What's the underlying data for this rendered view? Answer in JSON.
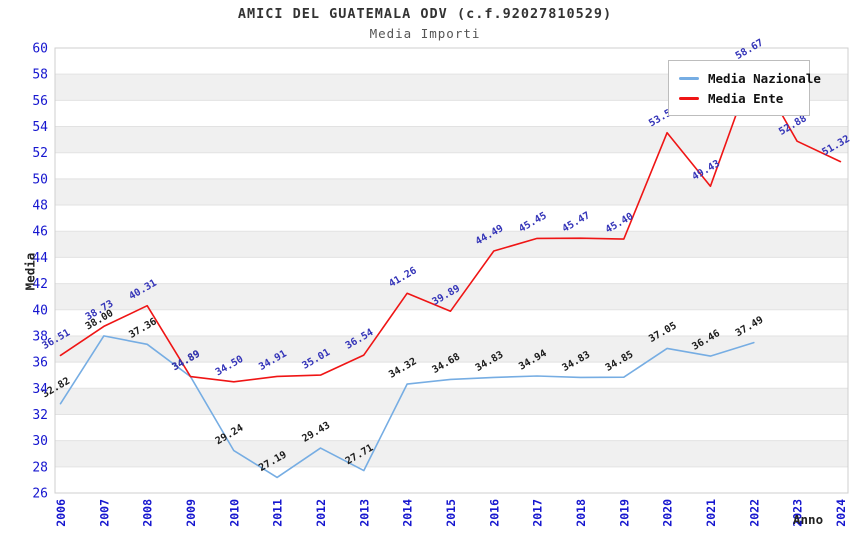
{
  "title": "AMICI DEL GUATEMALA ODV (c.f.92027810529)",
  "subtitle": "Media Importi",
  "legend": {
    "nazionale_label": "Media Nazionale",
    "ente_label": "Media Ente"
  },
  "axes": {
    "y_label": "Media",
    "x_label": "Anno"
  },
  "colors": {
    "nazionale_line": "#76ade3",
    "ente_line": "#ef1515",
    "nazionale_value_label": "#1c1c1c",
    "ente_value_label": "#3434b8",
    "tick_text": "#1616cf",
    "band_fill": "#f0f0f0",
    "grid_line": "#e2e2e2",
    "plot_border": "#cfcfcf",
    "legend_border": "#bdbdbd"
  },
  "chart_data": {
    "type": "line",
    "title": "AMICI DEL GUATEMALA ODV (c.f.92027810529)",
    "subtitle": "Media Importi",
    "xlabel": "Anno",
    "ylabel": "Media",
    "x": [
      2006,
      2007,
      2008,
      2009,
      2010,
      2011,
      2012,
      2013,
      2014,
      2015,
      2016,
      2017,
      2018,
      2019,
      2020,
      2021,
      2022,
      2023,
      2024
    ],
    "series": [
      {
        "name": "Media Nazionale",
        "values": [
          32.82,
          38.0,
          37.36,
          34.89,
          29.24,
          27.19,
          29.43,
          27.71,
          34.32,
          34.68,
          34.83,
          34.94,
          34.83,
          34.85,
          37.05,
          36.46,
          37.49,
          null,
          null
        ]
      },
      {
        "name": "Media Ente",
        "values": [
          36.51,
          38.73,
          40.31,
          34.89,
          34.5,
          34.91,
          35.01,
          36.54,
          41.26,
          39.89,
          44.49,
          45.45,
          45.47,
          45.4,
          53.53,
          49.43,
          58.67,
          52.88,
          51.32
        ]
      }
    ],
    "ylim": [
      26,
      60
    ],
    "y_ticks": [
      26,
      28,
      30,
      32,
      34,
      36,
      38,
      40,
      42,
      44,
      46,
      48,
      50,
      52,
      54,
      56,
      58,
      60
    ],
    "grid": "horizontal-bands",
    "legend_position": "top-right",
    "value_labels": "shown, rotated -30deg, two decimals"
  }
}
